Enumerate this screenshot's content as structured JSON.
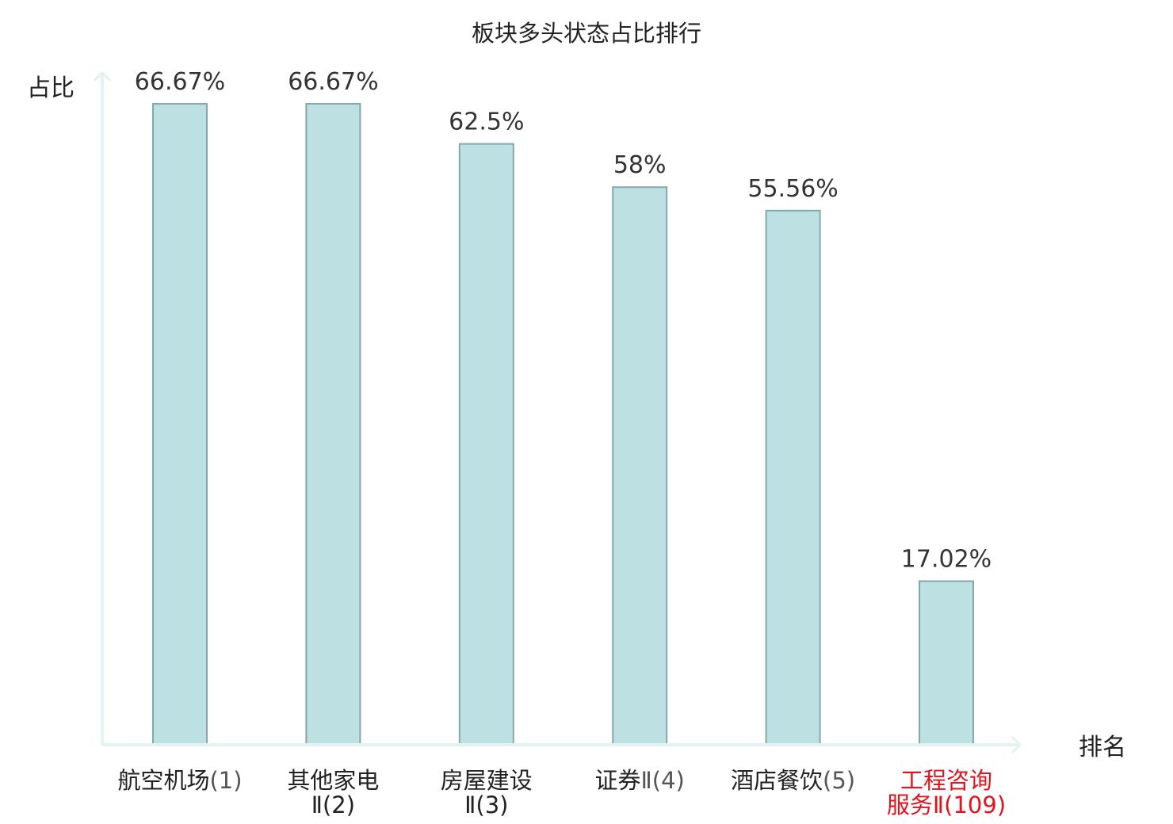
{
  "chart_data": {
    "type": "bar",
    "title": "板块多头状态占比排行",
    "xlabel": "排名",
    "ylabel": "占比",
    "ylim": [
      0,
      70
    ],
    "categories": [
      {
        "line1": "航空机场",
        "line1_suffix": "(1)",
        "line2": "",
        "line2_suffix": ""
      },
      {
        "line1": "其他家电",
        "line1_suffix": "",
        "line2": "Ⅱ(2)",
        "line2_suffix": ""
      },
      {
        "line1": "房屋建设",
        "line1_suffix": "",
        "line2": "Ⅱ(3)",
        "line2_suffix": ""
      },
      {
        "line1": "证券",
        "line1_suffix": "Ⅱ(4)",
        "line2": "",
        "line2_suffix": ""
      },
      {
        "line1": "酒店餐饮",
        "line1_suffix": "(5)",
        "line2": "",
        "line2_suffix": ""
      },
      {
        "line1": "工程咨询",
        "line1_suffix": "",
        "line2": "服务",
        "line2_suffix": "Ⅱ(109)"
      }
    ],
    "values": [
      66.67,
      66.67,
      62.5,
      58,
      55.56,
      17.02
    ],
    "value_labels": [
      "66.67%",
      "66.67%",
      "62.5%",
      "58%",
      "55.56%",
      "17.02%"
    ],
    "highlight_index": 5,
    "grid": false,
    "legend": "none"
  },
  "colors": {
    "bar_fill": "#bde0e3",
    "bar_stroke": "#87a8ab",
    "axis": "#e2f3f1",
    "highlight_text": "#e3121c",
    "text": "#222222"
  }
}
